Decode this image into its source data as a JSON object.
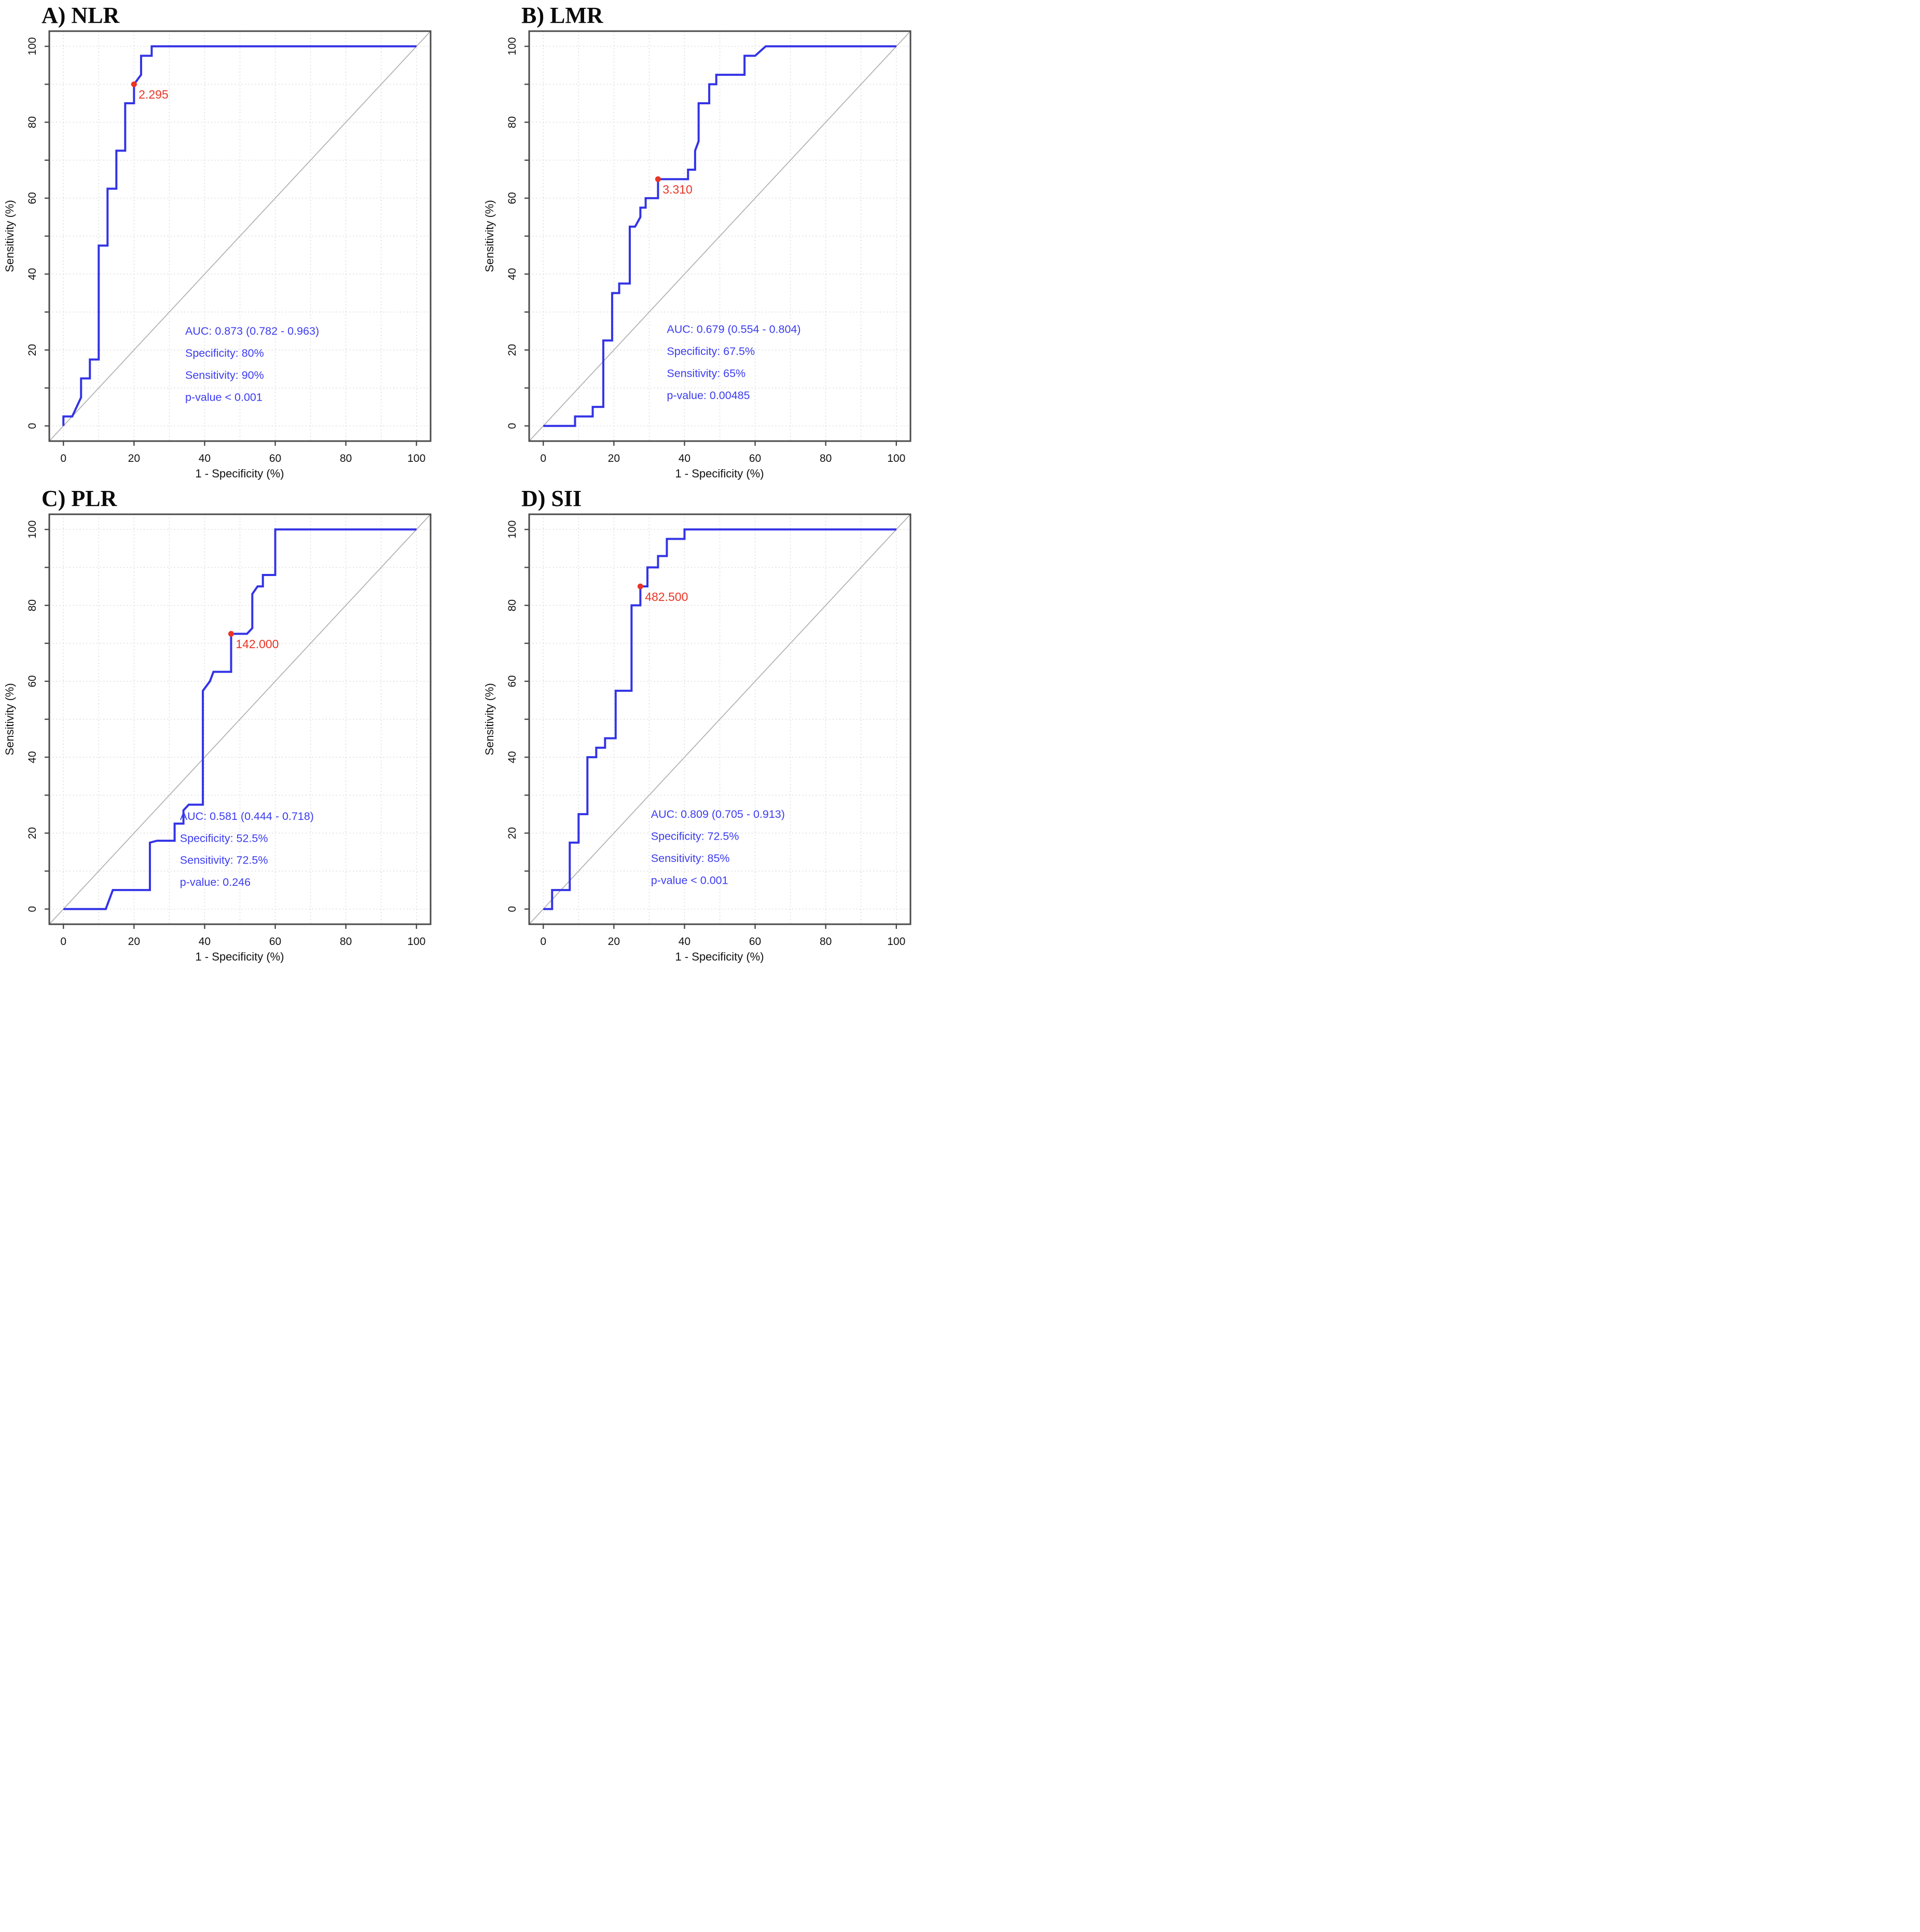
{
  "figure": {
    "description": "Four ROC curve panels comparing inflammatory indices",
    "layout": "2x2 grid"
  },
  "colors": {
    "curve_blue": "#3333e6",
    "stat_text_blue": "#3c3cf2",
    "cutoff_red": "#ea3425",
    "diagonal_gray": "#b3b3b3",
    "grid_gray": "#dcdcdc",
    "frame_gray": "#4a4a4a",
    "text_black": "#111111"
  },
  "chart_data": [
    {
      "type": "line",
      "panel": "A",
      "title": "A) NLR",
      "xlabel": "1 - Specificity (%)",
      "ylabel": "Sensitivity (%)",
      "xlim": [
        0,
        100
      ],
      "ylim": [
        0,
        100
      ],
      "x_ticks": [
        0,
        20,
        40,
        60,
        80,
        100
      ],
      "y_ticks": [
        0,
        20,
        40,
        60,
        80,
        100
      ],
      "grid": "dotted every 10, both axes",
      "reference_line": "diagonal y = x",
      "series_name": "ROC curve (NLR)",
      "roc_points": [
        [
          0,
          0
        ],
        [
          0,
          2.5
        ],
        [
          2.5,
          2.5
        ],
        [
          5,
          7.5
        ],
        [
          5,
          12.5
        ],
        [
          7.5,
          12.5
        ],
        [
          7.5,
          17.5
        ],
        [
          10,
          17.5
        ],
        [
          10,
          47.5
        ],
        [
          12.5,
          47.5
        ],
        [
          12.5,
          62.5
        ],
        [
          15,
          62.5
        ],
        [
          15,
          72.5
        ],
        [
          17.5,
          72.5
        ],
        [
          17.5,
          85
        ],
        [
          20,
          85
        ],
        [
          20,
          90
        ],
        [
          22,
          92.5
        ],
        [
          22,
          97.5
        ],
        [
          25,
          97.5
        ],
        [
          25,
          100
        ],
        [
          100,
          100
        ]
      ],
      "cutoff": {
        "value": "2.295",
        "x": 20,
        "y": 90
      },
      "annotations": [
        "AUC: 0.873 (0.782 - 0.963)",
        "Specificity: 80%",
        "Sensitivity: 90%",
        "p-value < 0.001"
      ],
      "annotation_xy": [
        34.5,
        24
      ]
    },
    {
      "type": "line",
      "panel": "B",
      "title": "B) LMR",
      "xlabel": "1 - Specificity (%)",
      "ylabel": "Sensitivity (%)",
      "xlim": [
        0,
        100
      ],
      "ylim": [
        0,
        100
      ],
      "x_ticks": [
        0,
        20,
        40,
        60,
        80,
        100
      ],
      "y_ticks": [
        0,
        20,
        40,
        60,
        80,
        100
      ],
      "grid": "dotted every 10, both axes",
      "reference_line": "diagonal y = x",
      "series_name": "ROC curve (LMR)",
      "roc_points": [
        [
          0,
          0
        ],
        [
          9,
          0
        ],
        [
          9,
          2.5
        ],
        [
          14,
          2.5
        ],
        [
          14,
          5
        ],
        [
          17,
          5
        ],
        [
          17,
          22.5
        ],
        [
          19.5,
          22.5
        ],
        [
          19.5,
          35
        ],
        [
          21.5,
          35
        ],
        [
          21.5,
          37.5
        ],
        [
          24.5,
          37.5
        ],
        [
          24.5,
          52.5
        ],
        [
          26,
          52.5
        ],
        [
          27.5,
          55
        ],
        [
          27.5,
          57.5
        ],
        [
          29,
          57.5
        ],
        [
          29,
          60
        ],
        [
          32.5,
          60
        ],
        [
          32.5,
          65
        ],
        [
          41,
          65
        ],
        [
          41,
          67.5
        ],
        [
          43,
          67.5
        ],
        [
          43,
          72.5
        ],
        [
          44,
          75
        ],
        [
          44,
          85
        ],
        [
          47,
          85
        ],
        [
          47,
          90
        ],
        [
          49,
          90
        ],
        [
          49,
          92.5
        ],
        [
          57,
          92.5
        ],
        [
          57,
          97.5
        ],
        [
          60,
          97.5
        ],
        [
          63,
          100
        ],
        [
          100,
          100
        ]
      ],
      "cutoff": {
        "value": "3.310",
        "x": 32.5,
        "y": 65
      },
      "annotations": [
        "AUC: 0.679 (0.554 - 0.804)",
        "Specificity: 67.5%",
        "Sensitivity: 65%",
        "p-value: 0.00485"
      ],
      "annotation_xy": [
        35,
        24.5
      ]
    },
    {
      "type": "line",
      "panel": "C",
      "title": "C) PLR",
      "xlabel": "1 - Specificity (%)",
      "ylabel": "Sensitivity (%)",
      "xlim": [
        0,
        100
      ],
      "ylim": [
        0,
        100
      ],
      "x_ticks": [
        0,
        20,
        40,
        60,
        80,
        100
      ],
      "y_ticks": [
        0,
        20,
        40,
        60,
        80,
        100
      ],
      "grid": "dotted every 10, both axes",
      "reference_line": "diagonal y = x",
      "series_name": "ROC curve (PLR)",
      "roc_points": [
        [
          0,
          0
        ],
        [
          12,
          0
        ],
        [
          13,
          2.5
        ],
        [
          14,
          5
        ],
        [
          24.5,
          5
        ],
        [
          24.5,
          17.5
        ],
        [
          26.5,
          18
        ],
        [
          31.5,
          18
        ],
        [
          31.5,
          22.5
        ],
        [
          34,
          22.5
        ],
        [
          34,
          26
        ],
        [
          35.5,
          27.5
        ],
        [
          39.5,
          27.5
        ],
        [
          39.5,
          57.5
        ],
        [
          41.5,
          60
        ],
        [
          42.5,
          62.5
        ],
        [
          47.5,
          62.5
        ],
        [
          47.5,
          72.5
        ],
        [
          52,
          72.5
        ],
        [
          53.5,
          74
        ],
        [
          53.5,
          83
        ],
        [
          55,
          85
        ],
        [
          56.5,
          85
        ],
        [
          56.5,
          88
        ],
        [
          60,
          88
        ],
        [
          60,
          100
        ],
        [
          100,
          100
        ]
      ],
      "cutoff": {
        "value": "142.000",
        "x": 47.5,
        "y": 72.5
      },
      "annotations": [
        "AUC: 0.581 (0.444 - 0.718)",
        "Specificity: 52.5%",
        "Sensitivity: 72.5%",
        "p-value: 0.246"
      ],
      "annotation_xy": [
        33,
        23.5
      ]
    },
    {
      "type": "line",
      "panel": "D",
      "title": "D) SII",
      "xlabel": "1 - Specificity (%)",
      "ylabel": "Sensitivity (%)",
      "xlim": [
        0,
        100
      ],
      "ylim": [
        0,
        100
      ],
      "x_ticks": [
        0,
        20,
        40,
        60,
        80,
        100
      ],
      "y_ticks": [
        0,
        20,
        40,
        60,
        80,
        100
      ],
      "grid": "dotted every 10, both axes",
      "reference_line": "diagonal y = x",
      "series_name": "ROC curve (SII)",
      "roc_points": [
        [
          0,
          0
        ],
        [
          2.5,
          0
        ],
        [
          2.5,
          5
        ],
        [
          7.5,
          5
        ],
        [
          7.5,
          17.5
        ],
        [
          10,
          17.5
        ],
        [
          10,
          25
        ],
        [
          12.5,
          25
        ],
        [
          12.5,
          40
        ],
        [
          15,
          40
        ],
        [
          15,
          42.5
        ],
        [
          17.5,
          42.5
        ],
        [
          17.5,
          45
        ],
        [
          20.5,
          45
        ],
        [
          20.5,
          57.5
        ],
        [
          25,
          57.5
        ],
        [
          25,
          80
        ],
        [
          27.5,
          80
        ],
        [
          27.5,
          85
        ],
        [
          29.5,
          85
        ],
        [
          29.5,
          90
        ],
        [
          32.5,
          90
        ],
        [
          32.5,
          93
        ],
        [
          35,
          93
        ],
        [
          35,
          97.5
        ],
        [
          40,
          97.5
        ],
        [
          40,
          100
        ],
        [
          100,
          100
        ]
      ],
      "cutoff": {
        "value": "482.500",
        "x": 27.5,
        "y": 85
      },
      "annotations": [
        "AUC: 0.809 (0.705 - 0.913)",
        "Specificity: 72.5%",
        "Sensitivity: 85%",
        "p-value < 0.001"
      ],
      "annotation_xy": [
        30.5,
        24
      ]
    }
  ]
}
